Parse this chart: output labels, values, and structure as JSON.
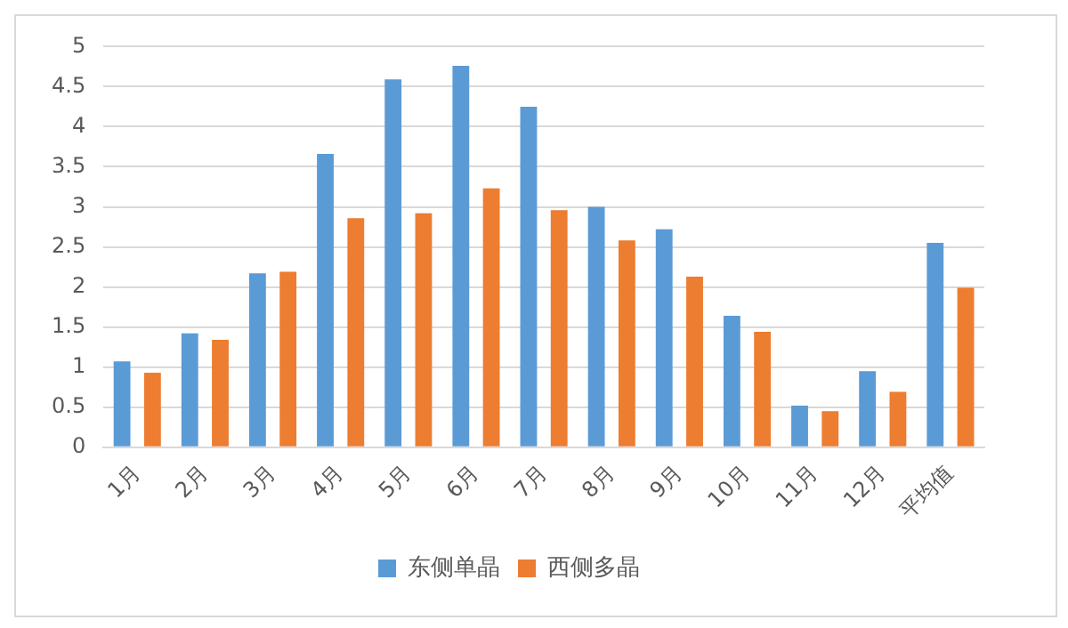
{
  "chart_data": {
    "type": "bar",
    "categories": [
      "1月",
      "2月",
      "3月",
      "4月",
      "5月",
      "6月",
      "7月",
      "8月",
      "9月",
      "10月",
      "11月",
      "12月",
      "平均值"
    ],
    "series": [
      {
        "name": "东侧单晶",
        "color": "#5b9bd5",
        "values": [
          1.07,
          1.42,
          2.17,
          3.66,
          4.59,
          4.76,
          4.25,
          3.0,
          2.72,
          1.64,
          0.52,
          0.95,
          2.55
        ]
      },
      {
        "name": "西侧多晶",
        "color": "#ed7d31",
        "values": [
          0.93,
          1.34,
          2.19,
          2.86,
          2.92,
          3.23,
          2.96,
          2.58,
          2.13,
          1.44,
          0.45,
          0.69,
          1.99
        ]
      }
    ],
    "ylim": [
      0,
      5
    ],
    "yticks": [
      0,
      0.5,
      1,
      1.5,
      2,
      2.5,
      3,
      3.5,
      4,
      4.5,
      5
    ],
    "grid": "y",
    "legend": "bottom"
  }
}
